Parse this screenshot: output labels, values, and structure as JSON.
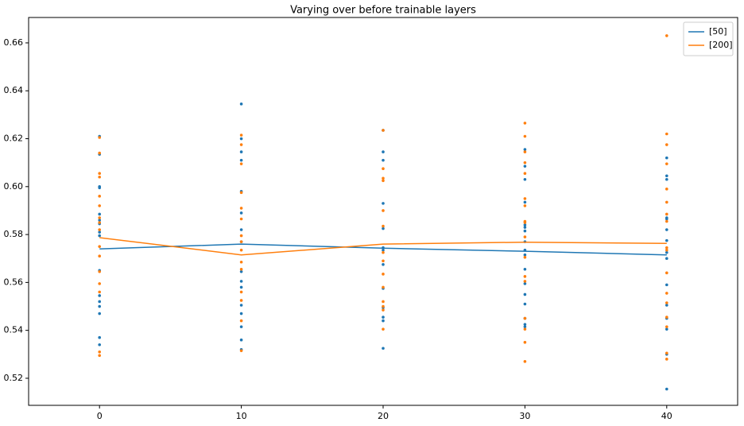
{
  "chart_data": {
    "type": "line",
    "title": "Varying over before trainable layers",
    "x": [
      0,
      10,
      20,
      30,
      40
    ],
    "xlim": [
      -5,
      45
    ],
    "xticks": [
      0,
      10,
      20,
      30,
      40
    ],
    "ylim": [
      0.5087,
      0.6706
    ],
    "yticks": [
      0.52,
      0.54,
      0.56,
      0.58,
      {
        "value": 0.6,
        "label": "0.60"
      },
      0.62,
      0.64,
      0.66
    ],
    "legend": "upper right",
    "series": [
      {
        "name": "[50]",
        "color": "#1f77b4",
        "values": [
          0.574,
          0.576,
          0.5743,
          0.573,
          0.5715
        ],
        "points": {
          "x": [
            0,
            0,
            0,
            0,
            0,
            0,
            0,
            0,
            0,
            0,
            0,
            0,
            0,
            0,
            0,
            0,
            10,
            10,
            10,
            10,
            10,
            10,
            10,
            10,
            10,
            10,
            10,
            10,
            10,
            10,
            10,
            10,
            20,
            20,
            20,
            20,
            20,
            20,
            20,
            20,
            20,
            20,
            20,
            20,
            20,
            30,
            30,
            30,
            30,
            30,
            30,
            30,
            30,
            30,
            30,
            30,
            30,
            30,
            30,
            30,
            30,
            30,
            40,
            40,
            40,
            40,
            40,
            40,
            40,
            40,
            40,
            40,
            40,
            40,
            40,
            40,
            40
          ],
          "y": [
            0.621,
            0.6135,
            0.6,
            0.5995,
            0.5885,
            0.586,
            0.5845,
            0.581,
            0.5795,
            0.565,
            0.5545,
            0.552,
            0.55,
            0.547,
            0.537,
            0.534,
            0.6345,
            0.62,
            0.6145,
            0.611,
            0.598,
            0.589,
            0.582,
            0.577,
            0.5645,
            0.5605,
            0.558,
            0.5505,
            0.547,
            0.5415,
            0.536,
            0.532,
            0.6235,
            0.6145,
            0.611,
            0.593,
            0.5825,
            0.5745,
            0.5735,
            0.5675,
            0.5575,
            0.5495,
            0.5455,
            0.544,
            0.5325,
            0.6155,
            0.6085,
            0.603,
            0.5935,
            0.584,
            0.583,
            0.5815,
            0.577,
            0.5735,
            0.5715,
            0.5655,
            0.5595,
            0.555,
            0.551,
            0.545,
            0.5425,
            0.5415,
            0.612,
            0.6045,
            0.603,
            0.587,
            0.5865,
            0.582,
            0.5775,
            0.5725,
            0.57,
            0.559,
            0.5505,
            0.545,
            0.5405,
            0.53,
            0.5155
          ]
        }
      },
      {
        "name": "[200]",
        "color": "#ff7f0e",
        "values": [
          0.5787,
          0.5715,
          0.576,
          0.5768,
          0.5763
        ],
        "points": {
          "x": [
            0,
            0,
            0,
            0,
            0,
            0,
            0,
            0,
            0,
            0,
            0,
            0,
            0,
            0,
            0,
            0,
            10,
            10,
            10,
            10,
            10,
            10,
            10,
            10,
            10,
            10,
            10,
            10,
            10,
            10,
            10,
            20,
            20,
            20,
            20,
            20,
            20,
            20,
            20,
            20,
            20,
            20,
            20,
            20,
            20,
            30,
            30,
            30,
            30,
            30,
            30,
            30,
            30,
            30,
            30,
            30,
            30,
            30,
            30,
            30,
            30,
            30,
            40,
            40,
            40,
            40,
            40,
            40,
            40,
            40,
            40,
            40,
            40,
            40,
            40,
            40,
            40,
            40,
            40
          ],
          "y": [
            0.6205,
            0.614,
            0.6055,
            0.604,
            0.596,
            0.592,
            0.587,
            0.585,
            0.582,
            0.575,
            0.571,
            0.5645,
            0.5595,
            0.556,
            0.531,
            0.5295,
            0.6215,
            0.6175,
            0.6095,
            0.5975,
            0.591,
            0.5865,
            0.5795,
            0.577,
            0.5735,
            0.5685,
            0.5655,
            0.556,
            0.5525,
            0.544,
            0.5315,
            0.6235,
            0.6075,
            0.6035,
            0.6025,
            0.59,
            0.5835,
            0.5725,
            0.569,
            0.5635,
            0.558,
            0.552,
            0.55,
            0.5485,
            0.5405,
            0.6265,
            0.621,
            0.6145,
            0.61,
            0.6055,
            0.595,
            0.592,
            0.5855,
            0.585,
            0.579,
            0.5705,
            0.5625,
            0.5605,
            0.545,
            0.5405,
            0.535,
            0.527,
            0.663,
            0.622,
            0.6175,
            0.6095,
            0.599,
            0.5935,
            0.5885,
            0.5855,
            0.5745,
            0.5735,
            0.564,
            0.5555,
            0.5515,
            0.5455,
            0.5415,
            0.5305,
            0.528
          ]
        }
      }
    ]
  }
}
